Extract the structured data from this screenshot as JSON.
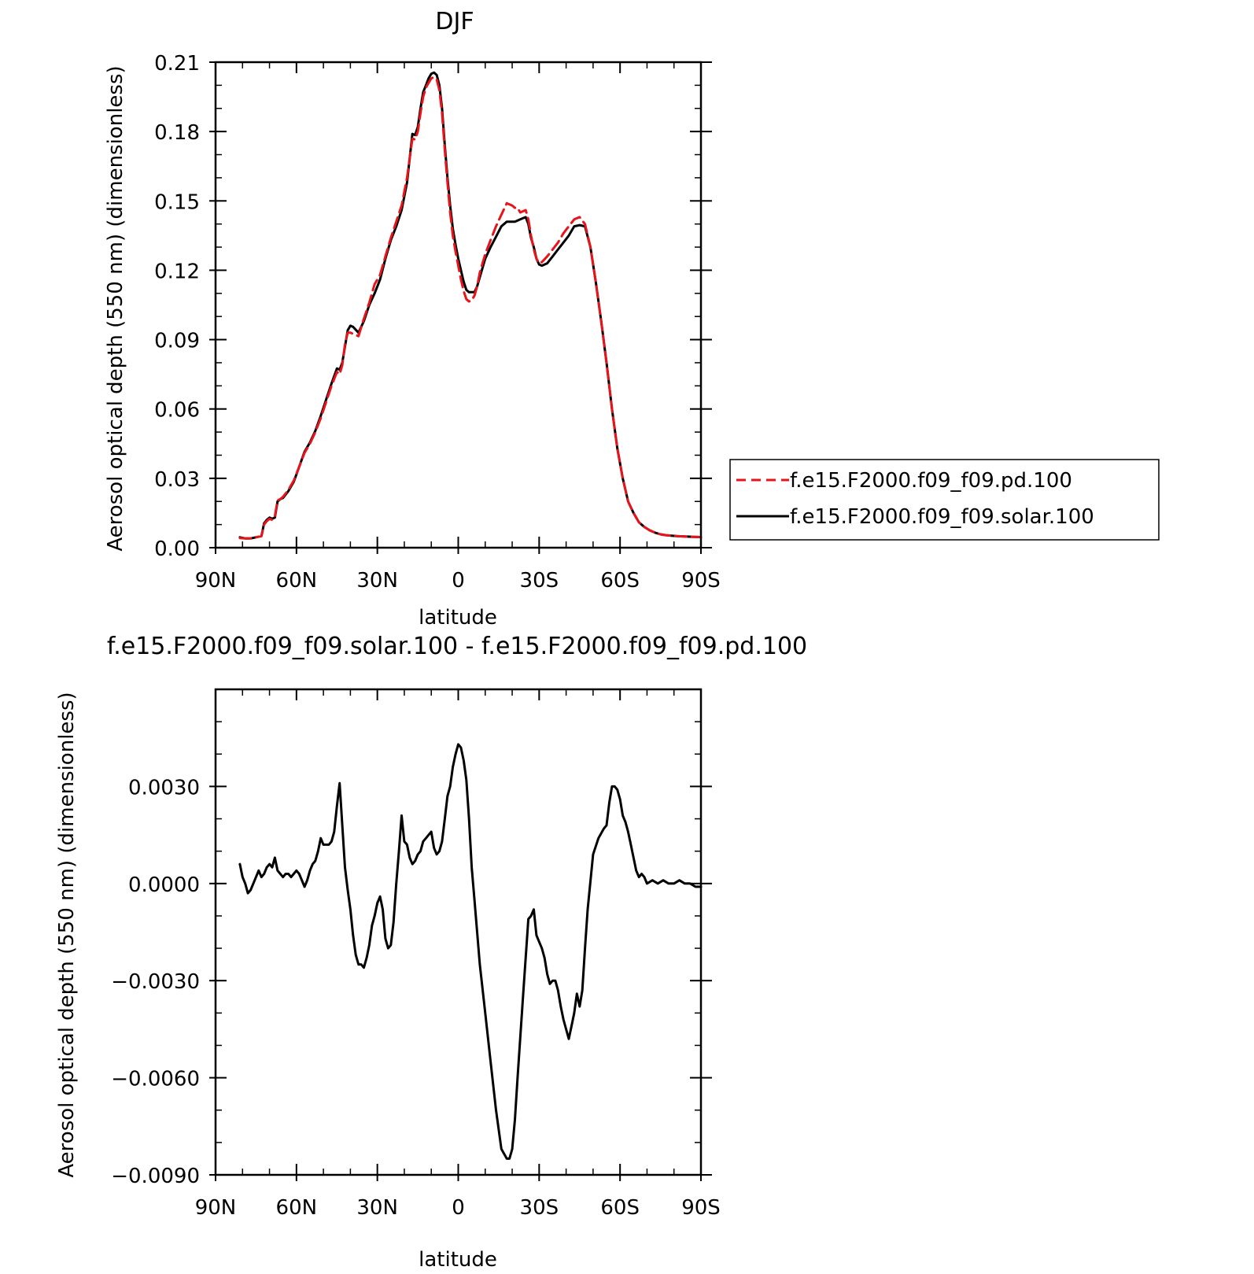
{
  "colors": {
    "pd": "#e8141b",
    "solar": "#000000",
    "axis": "#000000",
    "background": "#ffffff"
  },
  "chart_data": [
    {
      "type": "line",
      "title": "DJF",
      "xlabel": "latitude",
      "ylabel": "Aerosol optical depth (550 nm) (dimensionless)",
      "xlim": [
        90,
        -90
      ],
      "ylim": [
        0,
        0.21
      ],
      "xticks": [
        90,
        60,
        30,
        0,
        -30,
        -60,
        -90
      ],
      "xtick_labels": [
        "90N",
        "60N",
        "30N",
        "0",
        "30S",
        "60S",
        "90S"
      ],
      "yticks": [
        0,
        0.03,
        0.06,
        0.09,
        0.12,
        0.15,
        0.18,
        0.21
      ],
      "ytick_labels": [
        "0.00",
        "0.03",
        "0.06",
        "0.09",
        "0.12",
        "0.15",
        "0.18",
        "0.21"
      ],
      "legend_position": "right",
      "series": [
        {
          "name": "f.e15.F2000.f09_f09.pd.100",
          "color": "#e8141b",
          "dash": "dashed",
          "x": [
            81,
            79,
            77,
            75,
            73,
            72,
            71,
            70,
            69,
            68,
            67,
            66,
            65,
            63,
            61,
            59,
            57,
            55,
            53,
            51,
            49,
            47,
            45,
            44,
            43,
            42,
            41,
            40,
            39,
            37,
            35,
            33,
            31,
            29,
            27,
            25,
            23,
            21,
            19,
            17,
            16,
            15,
            14,
            13,
            12,
            11,
            10,
            9,
            8,
            7,
            6,
            5,
            4,
            3,
            2,
            1,
            0,
            -1,
            -2,
            -3,
            -4,
            -5,
            -6,
            -7,
            -8,
            -10,
            -12,
            -14,
            -16,
            -18,
            -20,
            -21,
            -22,
            -23,
            -25,
            -26,
            -27,
            -28,
            -29,
            -30,
            -31,
            -33,
            -35,
            -37,
            -39,
            -41,
            -43,
            -45,
            -47,
            -49,
            -51,
            -53,
            -55,
            -57,
            -59,
            -61,
            -63,
            -65,
            -67,
            -69,
            -71,
            -73,
            -75,
            -77,
            -79,
            -81,
            -83,
            -85,
            -87,
            -90
          ],
          "y": [
            0.0042,
            0.004,
            0.0041,
            0.0045,
            0.005,
            0.01,
            0.0115,
            0.0125,
            0.012,
            0.0135,
            0.0205,
            0.021,
            0.022,
            0.025,
            0.029,
            0.035,
            0.041,
            0.045,
            0.05,
            0.056,
            0.063,
            0.07,
            0.076,
            0.075,
            0.079,
            0.088,
            0.093,
            0.093,
            0.0925,
            0.0915,
            0.099,
            0.106,
            0.114,
            0.118,
            0.126,
            0.134,
            0.141,
            0.148,
            0.16,
            0.177,
            0.1765,
            0.18,
            0.188,
            0.195,
            0.199,
            0.201,
            0.203,
            0.2035,
            0.2025,
            0.198,
            0.188,
            0.172,
            0.158,
            0.145,
            0.135,
            0.128,
            0.122,
            0.116,
            0.111,
            0.1075,
            0.1065,
            0.107,
            0.109,
            0.113,
            0.119,
            0.127,
            0.133,
            0.139,
            0.144,
            0.149,
            0.148,
            0.147,
            0.147,
            0.145,
            0.146,
            0.142,
            0.135,
            0.129,
            0.125,
            0.123,
            0.1235,
            0.126,
            0.129,
            0.132,
            0.136,
            0.139,
            0.142,
            0.143,
            0.14,
            0.13,
            0.115,
            0.098,
            0.08,
            0.06,
            0.043,
            0.03,
            0.02,
            0.015,
            0.011,
            0.009,
            0.0075,
            0.0065,
            0.0058,
            0.0054,
            0.0052,
            0.005,
            0.0049,
            0.0048,
            0.0047,
            0.0046
          ]
        },
        {
          "name": "f.e15.F2000.f09_f09.solar.100",
          "color": "#000000",
          "dash": "solid",
          "x": [
            81,
            79,
            77,
            75,
            73,
            72,
            71,
            70,
            69,
            68,
            67,
            66,
            65,
            63,
            61,
            59,
            57,
            55,
            53,
            51,
            49,
            47,
            45,
            44,
            43,
            42,
            41,
            40,
            39,
            37,
            35,
            33,
            31,
            29,
            27,
            25,
            23,
            21,
            19,
            17,
            16,
            15,
            14,
            13,
            12,
            11,
            10,
            9,
            8,
            7,
            6,
            5,
            4,
            3,
            2,
            1,
            0,
            -1,
            -2,
            -3,
            -4,
            -5,
            -6,
            -7,
            -8,
            -10,
            -12,
            -14,
            -16,
            -18,
            -20,
            -21,
            -22,
            -23,
            -25,
            -26,
            -27,
            -28,
            -29,
            -30,
            -31,
            -33,
            -35,
            -37,
            -39,
            -41,
            -43,
            -45,
            -47,
            -49,
            -51,
            -53,
            -55,
            -57,
            -59,
            -61,
            -63,
            -65,
            -67,
            -69,
            -71,
            -73,
            -75,
            -77,
            -79,
            -81,
            -83,
            -85,
            -87,
            -90
          ],
          "y": [
            0.0045,
            0.004,
            0.004,
            0.0045,
            0.005,
            0.0105,
            0.012,
            0.013,
            0.0125,
            0.013,
            0.02,
            0.021,
            0.0215,
            0.0245,
            0.0285,
            0.035,
            0.0415,
            0.0455,
            0.0505,
            0.057,
            0.064,
            0.071,
            0.0775,
            0.077,
            0.08,
            0.087,
            0.094,
            0.096,
            0.0955,
            0.093,
            0.098,
            0.105,
            0.11,
            0.116,
            0.125,
            0.133,
            0.139,
            0.146,
            0.158,
            0.179,
            0.1785,
            0.182,
            0.19,
            0.197,
            0.2,
            0.203,
            0.205,
            0.2055,
            0.2045,
            0.2,
            0.19,
            0.174,
            0.16,
            0.148,
            0.138,
            0.131,
            0.125,
            0.12,
            0.115,
            0.1115,
            0.1105,
            0.1105,
            0.1105,
            0.113,
            0.117,
            0.125,
            0.13,
            0.1345,
            0.139,
            0.141,
            0.141,
            0.141,
            0.1415,
            0.142,
            0.143,
            0.14,
            0.134,
            0.13,
            0.125,
            0.1225,
            0.122,
            0.123,
            0.126,
            0.129,
            0.132,
            0.135,
            0.139,
            0.1395,
            0.139,
            0.13,
            0.115,
            0.098,
            0.08,
            0.06,
            0.043,
            0.03,
            0.02,
            0.015,
            0.011,
            0.009,
            0.0075,
            0.0065,
            0.0058,
            0.0054,
            0.0052,
            0.005,
            0.0049,
            0.0048,
            0.0047,
            0.0046
          ]
        }
      ]
    },
    {
      "type": "line",
      "title": "f.e15.F2000.f09_f09.solar.100 - f.e15.F2000.f09_f09.pd.100",
      "xlabel": "latitude",
      "ylabel": "Aerosol optical depth (550 nm) (dimensionless)",
      "xlim": [
        90,
        -90
      ],
      "ylim": [
        -0.009,
        0.006
      ],
      "xticks": [
        90,
        60,
        30,
        0,
        -30,
        -60,
        -90
      ],
      "xtick_labels": [
        "90N",
        "60N",
        "30N",
        "0",
        "30S",
        "60S",
        "90S"
      ],
      "yticks": [
        -0.009,
        -0.006,
        -0.003,
        0,
        0.003
      ],
      "ytick_labels": [
        "−0.0090",
        "−0.0060",
        "−0.0030",
        "0.0000",
        "0.0030"
      ],
      "series": [
        {
          "name": "",
          "color": "#000000",
          "dash": "solid",
          "x": [
            81,
            80,
            79,
            78,
            77,
            76,
            75,
            74,
            73,
            72,
            71,
            70,
            69,
            68,
            67,
            66,
            65,
            64,
            63,
            62,
            61,
            60,
            59,
            58,
            57,
            56,
            55,
            54,
            53,
            52,
            51,
            50,
            49,
            48,
            47,
            46,
            45,
            44,
            43,
            42,
            41,
            40,
            39,
            38,
            37,
            36,
            35,
            34,
            33,
            32,
            31,
            30,
            29,
            28,
            27,
            26,
            25,
            24,
            23,
            22,
            21,
            20,
            19,
            18,
            17,
            16,
            15,
            14,
            13,
            12,
            11,
            10,
            9,
            8,
            7,
            6,
            5,
            4,
            3,
            2,
            1,
            0,
            -1,
            -2,
            -3,
            -4,
            -5,
            -6,
            -7,
            -8,
            -10,
            -12,
            -14,
            -16,
            -18,
            -19,
            -20,
            -21,
            -22,
            -24,
            -26,
            -27,
            -28,
            -29,
            -30,
            -31,
            -32,
            -33,
            -34,
            -35,
            -36,
            -37,
            -38,
            -39,
            -40,
            -41,
            -42,
            -43,
            -44,
            -45,
            -46,
            -47,
            -48,
            -50,
            -52,
            -54,
            -55,
            -56,
            -57,
            -58,
            -59,
            -60,
            -61,
            -62,
            -63,
            -64,
            -65,
            -66,
            -67,
            -68,
            -69,
            -70,
            -72,
            -74,
            -76,
            -78,
            -80,
            -82,
            -84,
            -86,
            -88,
            -90
          ],
          "y": [
            0.0006,
            0.0002,
            0.0,
            -0.0003,
            -0.0002,
            0.0,
            0.0002,
            0.0004,
            0.0002,
            0.0003,
            0.0005,
            0.0006,
            0.0005,
            0.0008,
            0.0004,
            0.0003,
            0.0002,
            0.0003,
            0.0003,
            0.0002,
            0.0003,
            0.0004,
            0.0003,
            0.0001,
            -0.0001,
            0.0001,
            0.0004,
            0.0006,
            0.0007,
            0.001,
            0.0014,
            0.0012,
            0.0012,
            0.0012,
            0.0013,
            0.0016,
            0.0024,
            0.0031,
            0.0018,
            0.0005,
            -0.0002,
            -0.0008,
            -0.0016,
            -0.0022,
            -0.0025,
            -0.0025,
            -0.0026,
            -0.0023,
            -0.0019,
            -0.0013,
            -0.001,
            -0.0006,
            -0.0004,
            -0.0008,
            -0.0017,
            -0.002,
            -0.0019,
            -0.0012,
            0.0,
            0.001,
            0.0021,
            0.0013,
            0.0012,
            0.0008,
            0.0006,
            0.0007,
            0.0009,
            0.001,
            0.0013,
            0.0014,
            0.0015,
            0.0016,
            0.0011,
            0.0009,
            0.001,
            0.0013,
            0.002,
            0.0027,
            0.003,
            0.0036,
            0.004,
            0.0043,
            0.0042,
            0.0038,
            0.0032,
            0.002,
            0.0005,
            -0.0005,
            -0.0015,
            -0.0025,
            -0.004,
            -0.0055,
            -0.007,
            -0.0082,
            -0.0085,
            -0.0085,
            -0.0082,
            -0.0073,
            -0.006,
            -0.0035,
            -0.0011,
            -0.001,
            -0.0008,
            -0.0016,
            -0.0018,
            -0.002,
            -0.0023,
            -0.0028,
            -0.0031,
            -0.003,
            -0.003,
            -0.0033,
            -0.0038,
            -0.0042,
            -0.0045,
            -0.0048,
            -0.0044,
            -0.004,
            -0.0034,
            -0.0038,
            -0.0033,
            -0.002,
            -0.0008,
            0.0009,
            0.0014,
            0.0017,
            0.0018,
            0.0025,
            0.003,
            0.003,
            0.0029,
            0.0026,
            0.0021,
            0.0019,
            0.0016,
            0.0012,
            0.0008,
            0.0004,
            0.0002,
            0.0003,
            0.0002,
            0.0,
            0.0001,
            0.0,
            0.0001,
            0.0,
            0.0,
            0.0001,
            0.0,
            0.0,
            -0.0001,
            -0.0001
          ]
        }
      ]
    }
  ]
}
